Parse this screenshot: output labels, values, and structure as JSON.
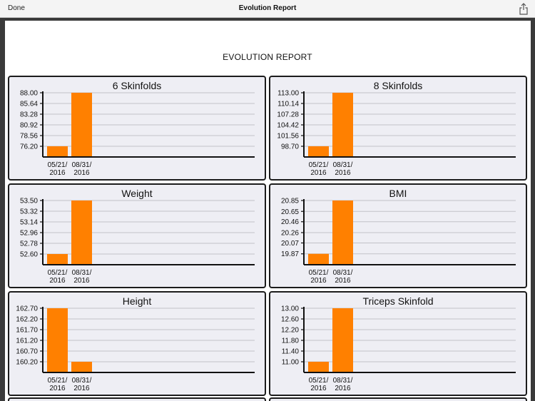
{
  "navbar": {
    "done_label": "Done",
    "title": "Evolution Report",
    "share_icon": "share-icon"
  },
  "report": {
    "title": "EVOLUTION REPORT"
  },
  "colors": {
    "bar": "#ff8000",
    "grid": "#c2c2c8",
    "axis": "#111111"
  },
  "chart_data": [
    {
      "type": "bar",
      "title": "6 Skinfolds",
      "categories": [
        "05/21/\n2016",
        "08/31/\n2016"
      ],
      "values": [
        76.2,
        88.0
      ],
      "yticks": [
        "76.20",
        "78.56",
        "80.92",
        "83.28",
        "85.64",
        "88.00"
      ],
      "ylim": [
        73.84,
        88.0
      ]
    },
    {
      "type": "bar",
      "title": "8 Skinfolds",
      "categories": [
        "05/21/\n2016",
        "08/31/\n2016"
      ],
      "values": [
        98.7,
        113.0
      ],
      "yticks": [
        "98.70",
        "101.56",
        "104.42",
        "107.28",
        "110.14",
        "113.00"
      ],
      "ylim": [
        95.84,
        113.0
      ]
    },
    {
      "type": "bar",
      "title": "Weight",
      "categories": [
        "05/21/\n2016",
        "08/31/\n2016"
      ],
      "values": [
        52.6,
        53.5
      ],
      "yticks": [
        "52.60",
        "52.78",
        "52.96",
        "53.14",
        "53.32",
        "53.50"
      ],
      "ylim": [
        52.42,
        53.5
      ]
    },
    {
      "type": "bar",
      "title": "BMI",
      "categories": [
        "05/21/\n2016",
        "08/31/\n2016"
      ],
      "values": [
        19.87,
        20.85
      ],
      "yticks": [
        "19.87",
        "20.07",
        "20.26",
        "20.46",
        "20.65",
        "20.85"
      ],
      "ylim": [
        19.67,
        20.85
      ]
    },
    {
      "type": "bar",
      "title": "Height",
      "categories": [
        "05/21/\n2016",
        "08/31/\n2016"
      ],
      "values": [
        162.7,
        160.2
      ],
      "yticks": [
        "160.20",
        "160.70",
        "161.20",
        "161.70",
        "162.20",
        "162.70"
      ],
      "ylim": [
        159.7,
        162.7
      ]
    },
    {
      "type": "bar",
      "title": "Triceps Skinfold",
      "categories": [
        "05/21/\n2016",
        "08/31/\n2016"
      ],
      "values": [
        11.0,
        13.0
      ],
      "yticks": [
        "11.00",
        "11.40",
        "11.80",
        "12.20",
        "12.60",
        "13.00"
      ],
      "ylim": [
        10.6,
        13.0
      ]
    }
  ]
}
